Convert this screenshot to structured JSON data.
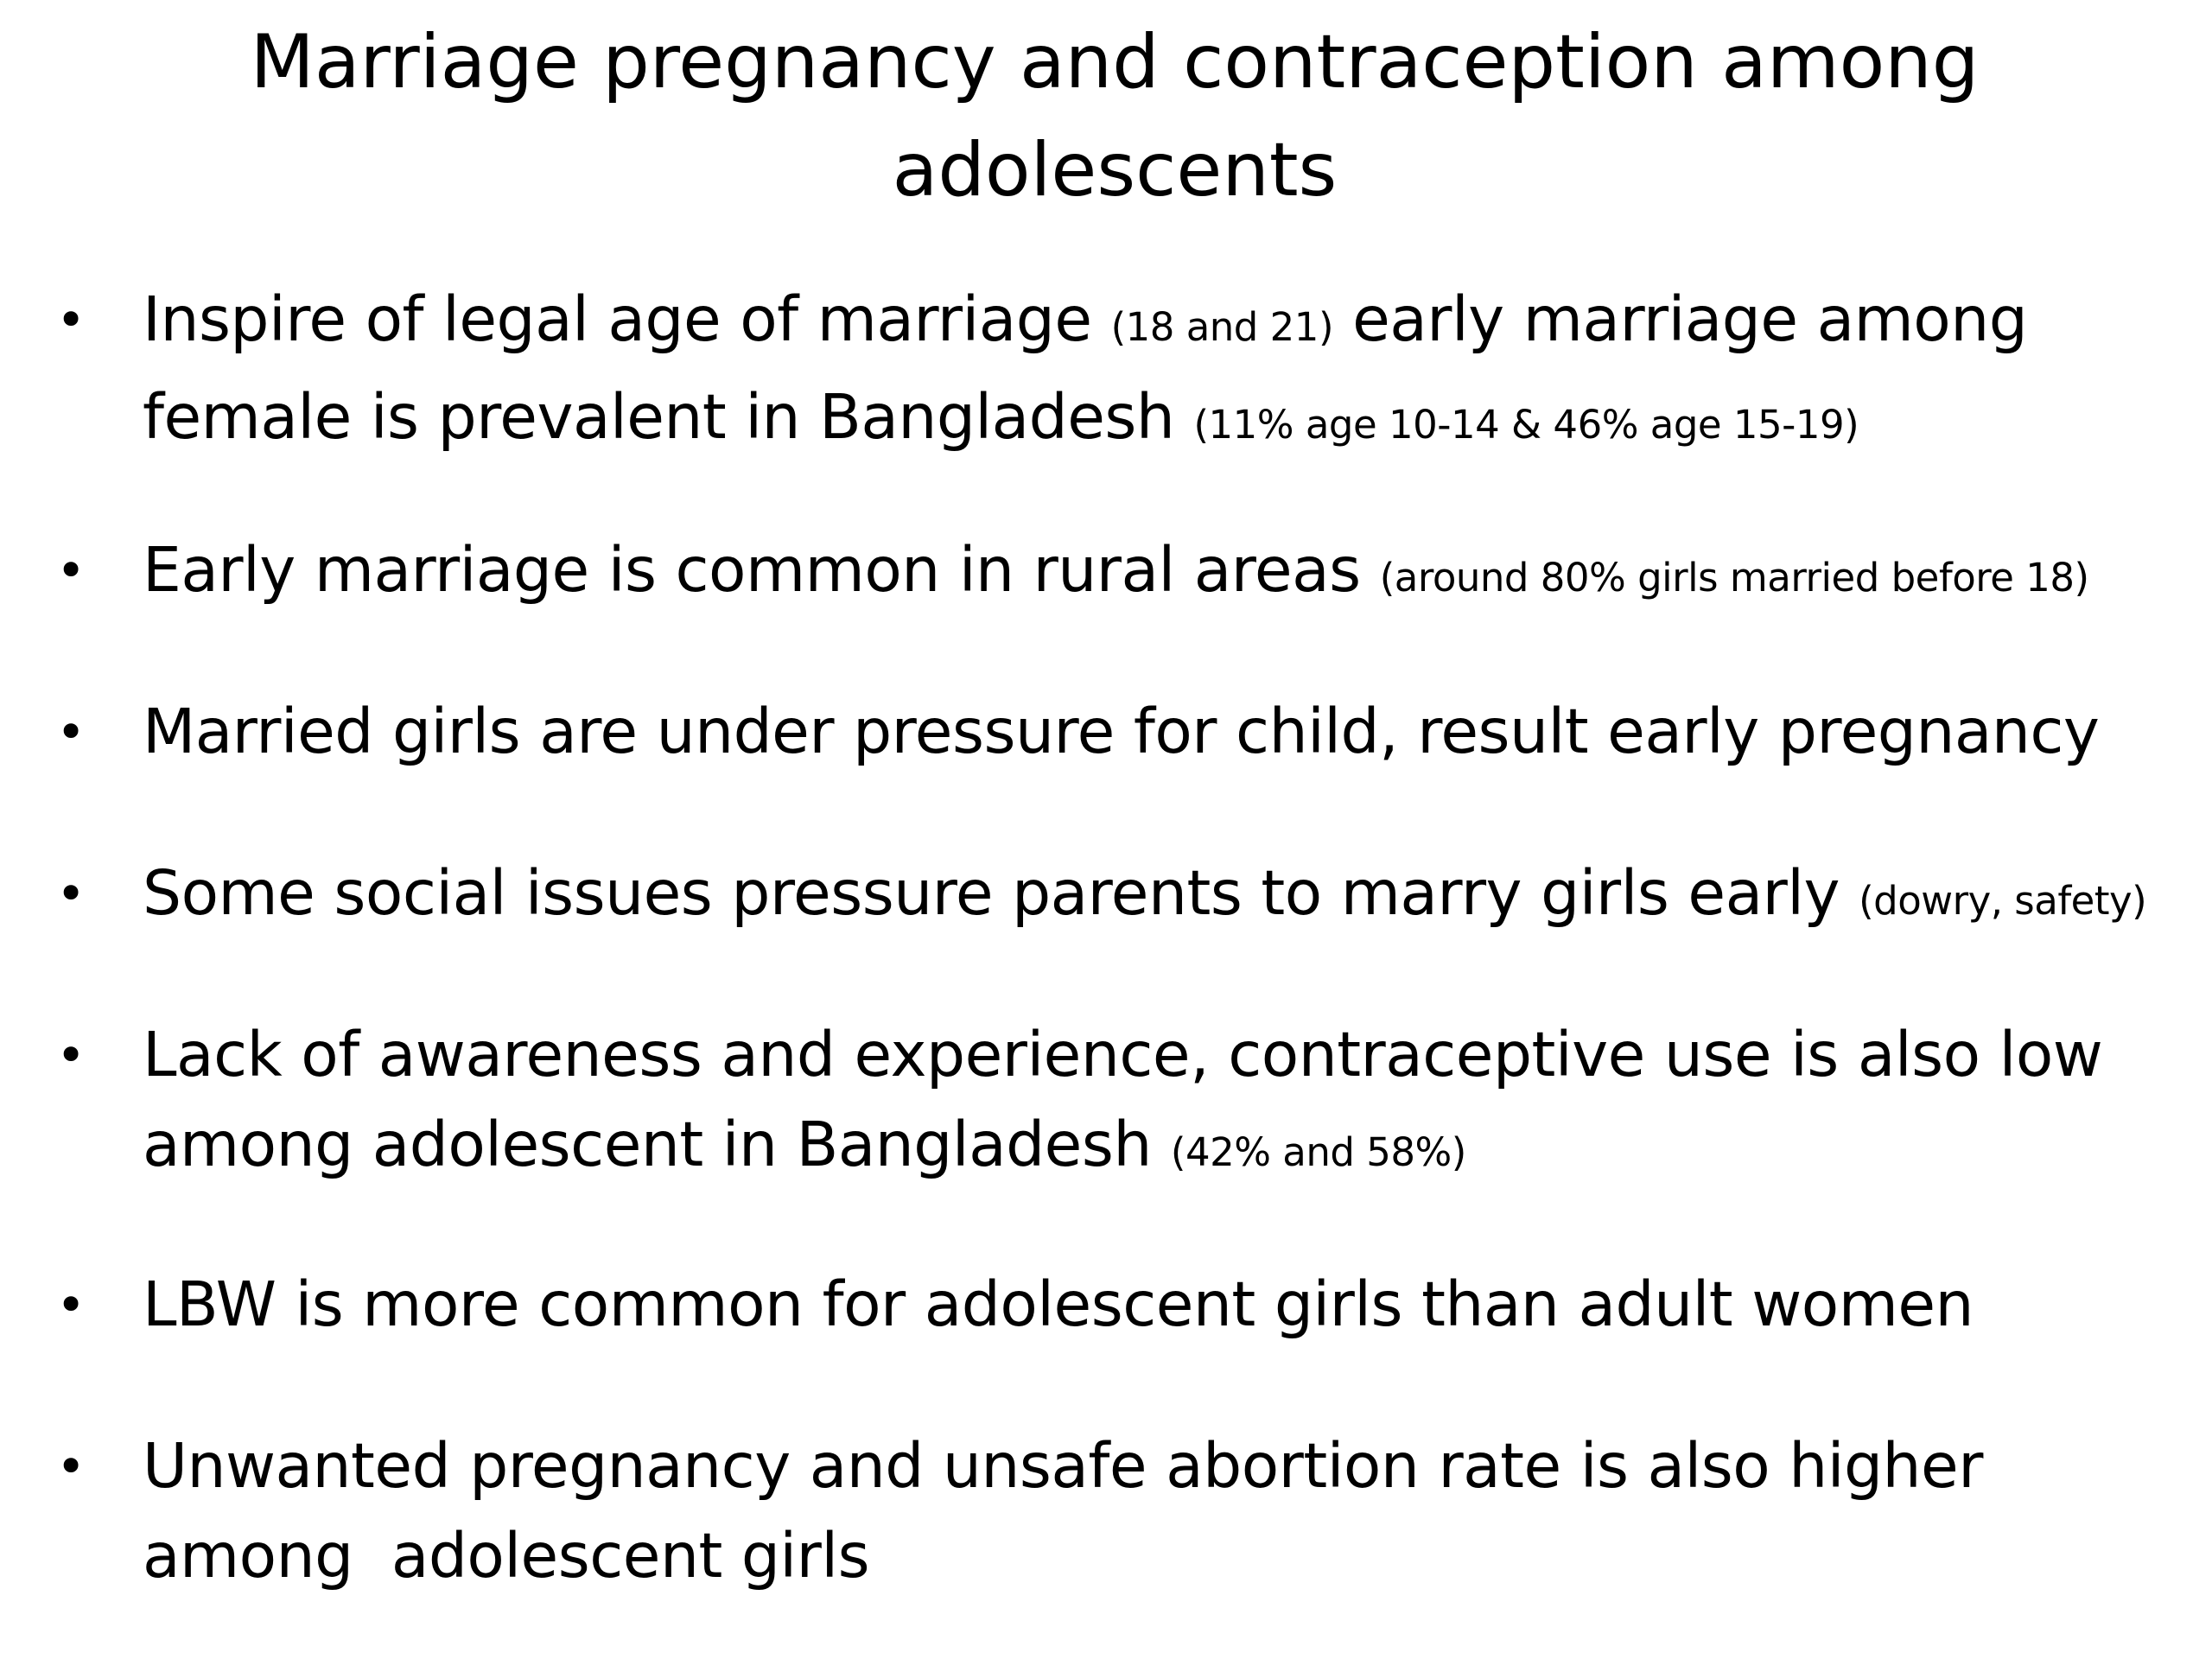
{
  "title": "Marriage pregnancy and contraception among adolescents",
  "bullets": [
    {
      "text": "Inspire of legal age of marriage",
      "note1": "(18 and 21)",
      "text2": "early marriage among female is prevalent in Bangladesh",
      "note2": "(11% age 10-14 & 46% age 15-19)"
    },
    {
      "text": "Early marriage is common in rural areas",
      "note": "(around 80% girls married before 18)"
    },
    {
      "text": "Married girls are under pressure for child, result early pregnancy"
    },
    {
      "text": "Some social issues pressure parents to marry girls early",
      "note": "(dowry, safety)"
    },
    {
      "text": "Lack of awareness and experience, contraceptive use is also low among adolescent in Bangladesh",
      "note": "(42% and 58%)"
    },
    {
      "text": "LBW is more common for adolescent girls than adult women"
    },
    {
      "text": "Unwanted pregnancy and unsafe abortion rate is also higher among  adolescent girls"
    }
  ],
  "bullet_symbol": "•"
}
